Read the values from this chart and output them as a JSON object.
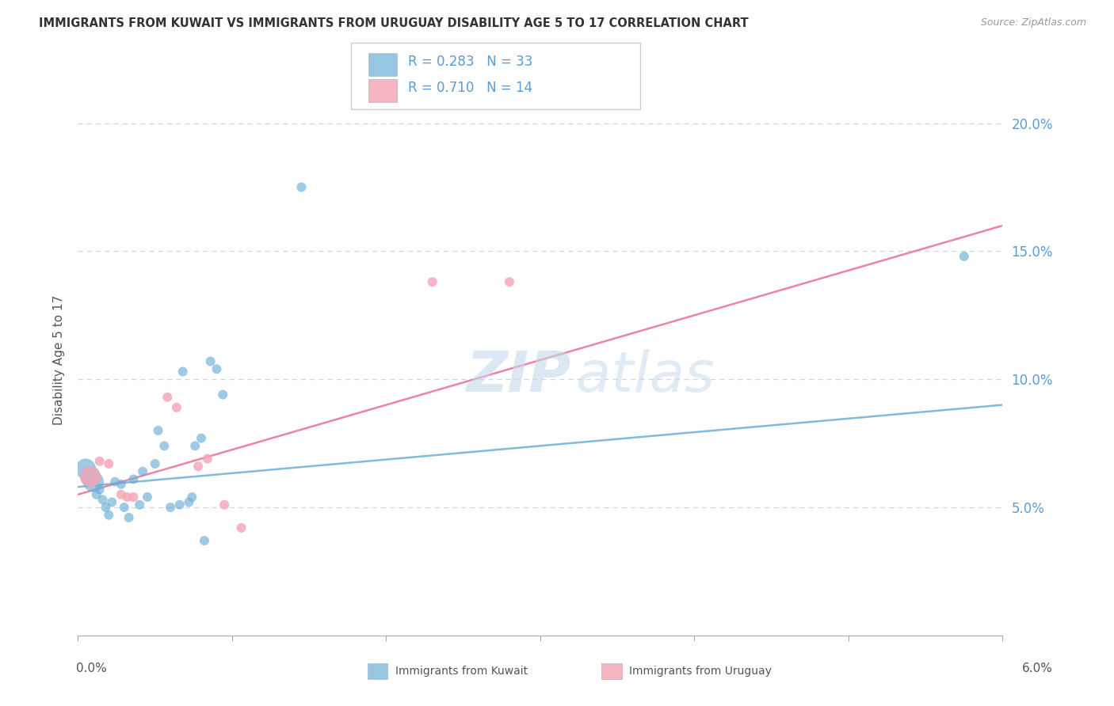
{
  "title": "IMMIGRANTS FROM KUWAIT VS IMMIGRANTS FROM URUGUAY DISABILITY AGE 5 TO 17 CORRELATION CHART",
  "source": "Source: ZipAtlas.com",
  "ylabel": "Disability Age 5 to 17",
  "xlim": [
    0.0,
    6.0
  ],
  "ylim": [
    0.0,
    21.5
  ],
  "yticks": [
    5.0,
    10.0,
    15.0,
    20.0
  ],
  "ytick_labels": [
    "5.0%",
    "10.0%",
    "15.0%",
    "20.0%"
  ],
  "kuwait_color": "#6baed6",
  "uruguay_color": "#f4a8b8",
  "kuwait_line_color": "#6baed6",
  "uruguay_line_color": "#e87090",
  "kuwait_R": 0.283,
  "kuwait_N": 33,
  "uruguay_R": 0.71,
  "uruguay_N": 14,
  "kuwait_scatter": [
    [
      0.05,
      6.5
    ],
    [
      0.08,
      6.2
    ],
    [
      0.1,
      6.0
    ],
    [
      0.12,
      5.5
    ],
    [
      0.14,
      5.7
    ],
    [
      0.16,
      5.3
    ],
    [
      0.18,
      5.0
    ],
    [
      0.2,
      4.7
    ],
    [
      0.22,
      5.2
    ],
    [
      0.24,
      6.0
    ],
    [
      0.28,
      5.9
    ],
    [
      0.3,
      5.0
    ],
    [
      0.33,
      4.6
    ],
    [
      0.36,
      6.1
    ],
    [
      0.4,
      5.1
    ],
    [
      0.42,
      6.4
    ],
    [
      0.45,
      5.4
    ],
    [
      0.5,
      6.7
    ],
    [
      0.52,
      8.0
    ],
    [
      0.56,
      7.4
    ],
    [
      0.6,
      5.0
    ],
    [
      0.66,
      5.1
    ],
    [
      0.68,
      10.3
    ],
    [
      0.72,
      5.2
    ],
    [
      0.74,
      5.4
    ],
    [
      0.76,
      7.4
    ],
    [
      0.8,
      7.7
    ],
    [
      0.82,
      3.7
    ],
    [
      0.86,
      10.7
    ],
    [
      0.9,
      10.4
    ],
    [
      0.94,
      9.4
    ],
    [
      1.45,
      17.5
    ],
    [
      5.75,
      14.8
    ]
  ],
  "kuwait_sizes": [
    80,
    80,
    80,
    80,
    80,
    80,
    80,
    80,
    80,
    80,
    80,
    80,
    80,
    80,
    80,
    80,
    80,
    80,
    80,
    80,
    80,
    80,
    80,
    80,
    80,
    80,
    80,
    80,
    80,
    80,
    80,
    80,
    100
  ],
  "uruguay_scatter": [
    [
      0.08,
      6.2
    ],
    [
      0.14,
      6.8
    ],
    [
      0.2,
      6.7
    ],
    [
      0.28,
      5.5
    ],
    [
      0.32,
      5.4
    ],
    [
      0.36,
      5.4
    ],
    [
      0.58,
      9.3
    ],
    [
      0.64,
      8.9
    ],
    [
      0.78,
      6.6
    ],
    [
      0.84,
      6.9
    ],
    [
      0.95,
      5.1
    ],
    [
      1.06,
      4.2
    ],
    [
      2.3,
      13.8
    ],
    [
      2.8,
      13.8
    ]
  ],
  "uruguay_sizes": [
    80,
    80,
    80,
    80,
    80,
    80,
    80,
    80,
    80,
    80,
    80,
    80,
    80,
    80
  ],
  "kuwait_line_x": [
    0.0,
    6.0
  ],
  "kuwait_line_y": [
    5.8,
    9.0
  ],
  "uruguay_line_x": [
    0.0,
    6.0
  ],
  "uruguay_line_y": [
    5.5,
    16.0
  ],
  "watermark_line1": "ZIP",
  "watermark_line2": "atlas",
  "background_color": "#ffffff",
  "grid_color": "#c8d8e8",
  "legend_R_label": "R = ",
  "legend_N_label": "   N = ",
  "bottom_legend_left": "Immigrants from Kuwait",
  "bottom_legend_right": "Immigrants from Uruguay"
}
